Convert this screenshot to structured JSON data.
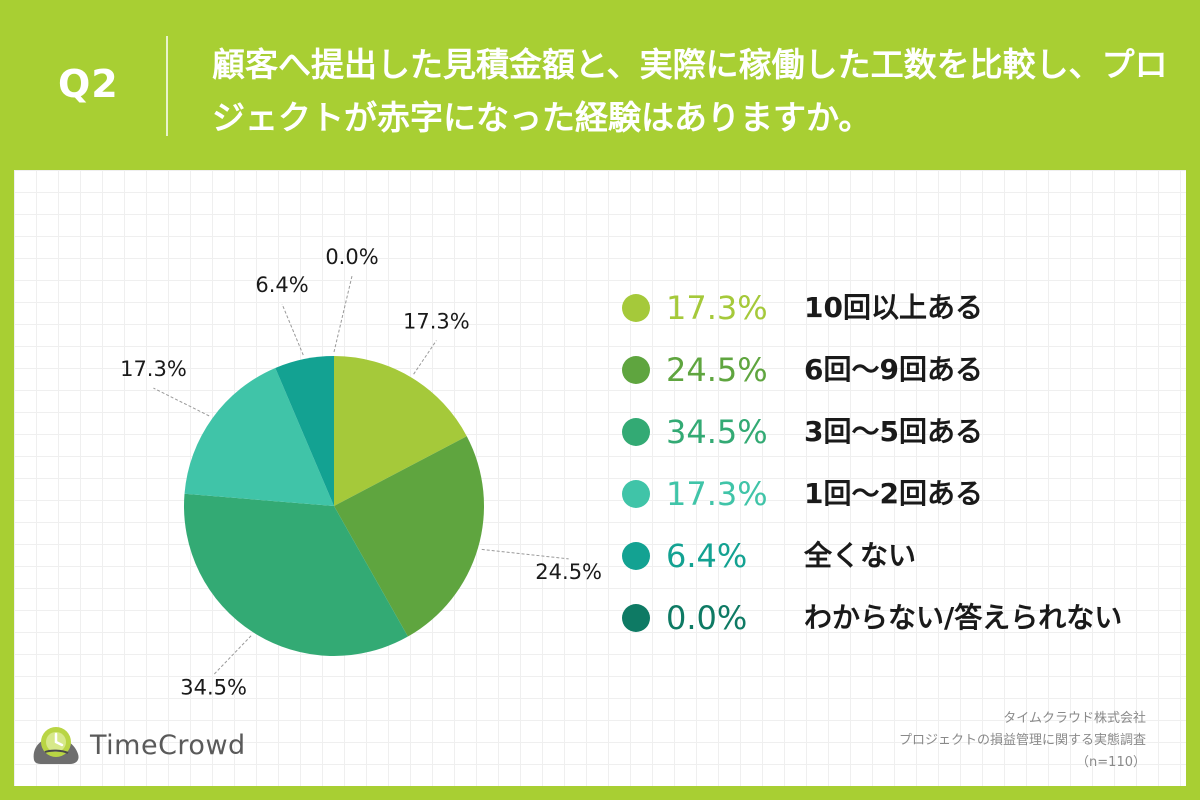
{
  "header": {
    "question_label": "Q2",
    "question_text": "顧客へ提出した見積金額と、実際に稼働した工数を比較し、プロジェクトが赤字になった経験はありますか。"
  },
  "chart_data": {
    "type": "pie",
    "title": "顧客へ提出した見積金額と、実際に稼働した工数を比較し、プロジェクトが赤字になった経験はありますか。",
    "unit": "%",
    "slices": [
      {
        "label": "10回以上ある",
        "value": 17.3,
        "display": "17.3%",
        "color": "#a5c93a",
        "text_color": "#a5c93a"
      },
      {
        "label": "6回〜9回ある",
        "value": 24.5,
        "display": "24.5%",
        "color": "#5fa53f",
        "text_color": "#5fa53f"
      },
      {
        "label": "3回〜5回ある",
        "value": 34.5,
        "display": "34.5%",
        "color": "#33aa74",
        "text_color": "#33aa74"
      },
      {
        "label": "1回〜2回ある",
        "value": 17.3,
        "display": "17.3%",
        "color": "#40c4a8",
        "text_color": "#40c4a8"
      },
      {
        "label": "全くない",
        "value": 6.4,
        "display": "6.4%",
        "color": "#13a292",
        "text_color": "#13a292"
      },
      {
        "label": "わからない/答えられない",
        "value": 0.0,
        "display": "0.0%",
        "color": "#0e7a64",
        "text_color": "#0e7a64"
      }
    ]
  },
  "source": {
    "company": "タイムクラウド株式会社",
    "survey": "プロジェクトの損益管理に関する実態調査",
    "sample": "（n=110）"
  },
  "logo": {
    "text": "TimeCrowd",
    "icon": "timecrowd-logo-icon"
  }
}
